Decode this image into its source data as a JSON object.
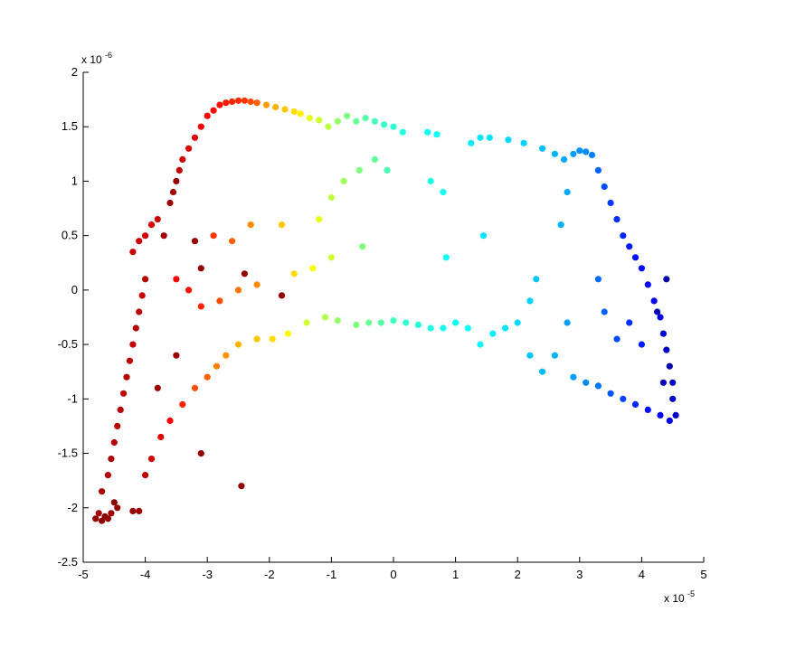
{
  "chart_data": {
    "type": "scatter",
    "title": "",
    "xlabel": "",
    "ylabel": "",
    "xlim": [
      -5,
      5
    ],
    "ylim": [
      -2.5,
      2
    ],
    "xticks": [
      "-5",
      "-4",
      "-3",
      "-2",
      "-1",
      "0",
      "1",
      "2",
      "3",
      "4",
      "5"
    ],
    "yticks": [
      "2",
      "1.5",
      "1",
      "0.5",
      "0",
      "-0.5",
      "-1",
      "-1.5",
      "-2",
      "-2.5"
    ],
    "x_multiplier": {
      "base": "x 10",
      "exponent": "-5"
    },
    "y_multiplier": {
      "base": "x 10",
      "exponent": "-6"
    },
    "grid": false,
    "legend": "none",
    "colormap": "jet",
    "colors": {
      "axis": "#000000",
      "background": "#ffffff"
    },
    "series": [
      {
        "points": [
          {
            "x": -4.8,
            "y": -2.1,
            "c": 0.98
          },
          {
            "x": -4.75,
            "y": -2.05,
            "c": 0.97
          },
          {
            "x": -4.7,
            "y": -2.12,
            "c": 0.98
          },
          {
            "x": -4.65,
            "y": -2.08,
            "c": 0.99
          },
          {
            "x": -4.6,
            "y": -2.1,
            "c": 0.98
          },
          {
            "x": -4.55,
            "y": -2.05,
            "c": 0.97
          },
          {
            "x": -4.5,
            "y": -1.95,
            "c": 0.99
          },
          {
            "x": -4.45,
            "y": -2.0,
            "c": 0.98
          },
          {
            "x": -4.2,
            "y": -2.03,
            "c": 0.98
          },
          {
            "x": -4.1,
            "y": -2.03,
            "c": 0.97
          },
          {
            "x": -4.7,
            "y": -1.85,
            "c": 0.96
          },
          {
            "x": -4.6,
            "y": -1.7,
            "c": 0.95
          },
          {
            "x": -4.55,
            "y": -1.55,
            "c": 0.96
          },
          {
            "x": -4.5,
            "y": -1.4,
            "c": 0.95
          },
          {
            "x": -4.45,
            "y": -1.25,
            "c": 0.94
          },
          {
            "x": -4.4,
            "y": -1.1,
            "c": 0.95
          },
          {
            "x": -4.35,
            "y": -0.95,
            "c": 0.94
          },
          {
            "x": -4.3,
            "y": -0.8,
            "c": 0.95
          },
          {
            "x": -4.25,
            "y": -0.65,
            "c": 0.94
          },
          {
            "x": -4.2,
            "y": -0.5,
            "c": 0.93
          },
          {
            "x": -4.15,
            "y": -0.35,
            "c": 0.95
          },
          {
            "x": -4.1,
            "y": -0.2,
            "c": 0.94
          },
          {
            "x": -4.05,
            "y": -0.05,
            "c": 0.93
          },
          {
            "x": -4.0,
            "y": 0.1,
            "c": 0.95
          },
          {
            "x": -4.2,
            "y": 0.35,
            "c": 0.93
          },
          {
            "x": -4.1,
            "y": 0.45,
            "c": 0.92
          },
          {
            "x": -4.0,
            "y": 0.5,
            "c": 0.92
          },
          {
            "x": -3.9,
            "y": 0.6,
            "c": 0.91
          },
          {
            "x": -3.8,
            "y": 0.65,
            "c": 0.93
          },
          {
            "x": -3.6,
            "y": 0.8,
            "c": 0.97
          },
          {
            "x": -3.55,
            "y": 0.9,
            "c": 0.97
          },
          {
            "x": -3.5,
            "y": 1.0,
            "c": 0.98
          },
          {
            "x": -3.45,
            "y": 1.1,
            "c": 0.94
          },
          {
            "x": -3.4,
            "y": 1.2,
            "c": 0.92
          },
          {
            "x": -3.3,
            "y": 1.3,
            "c": 0.91
          },
          {
            "x": -3.2,
            "y": 1.4,
            "c": 0.9
          },
          {
            "x": -3.1,
            "y": 1.5,
            "c": 0.89
          },
          {
            "x": -3.0,
            "y": 1.6,
            "c": 0.88
          },
          {
            "x": -2.9,
            "y": 1.65,
            "c": 0.87
          },
          {
            "x": -2.8,
            "y": 1.7,
            "c": 0.86
          },
          {
            "x": -2.7,
            "y": 1.72,
            "c": 0.85
          },
          {
            "x": -2.6,
            "y": 1.73,
            "c": 0.84
          },
          {
            "x": -2.5,
            "y": 1.74,
            "c": 0.83
          },
          {
            "x": -2.4,
            "y": 1.74,
            "c": 0.82
          },
          {
            "x": -2.3,
            "y": 1.73,
            "c": 0.8
          },
          {
            "x": -2.2,
            "y": 1.72,
            "c": 0.78
          },
          {
            "x": -2.05,
            "y": 1.7,
            "c": 0.72
          },
          {
            "x": -1.9,
            "y": 1.68,
            "c": 0.7
          },
          {
            "x": -1.75,
            "y": 1.66,
            "c": 0.68
          },
          {
            "x": -1.6,
            "y": 1.64,
            "c": 0.66
          },
          {
            "x": -1.5,
            "y": 1.62,
            "c": 0.64
          },
          {
            "x": -1.35,
            "y": 1.58,
            "c": 0.6
          },
          {
            "x": -1.2,
            "y": 1.56,
            "c": 0.58
          },
          {
            "x": -1.05,
            "y": 1.5,
            "c": 0.56
          },
          {
            "x": -0.9,
            "y": 1.55,
            "c": 0.52
          },
          {
            "x": -0.75,
            "y": 1.6,
            "c": 0.5
          },
          {
            "x": -0.6,
            "y": 1.55,
            "c": 0.48
          },
          {
            "x": -0.45,
            "y": 1.58,
            "c": 0.46
          },
          {
            "x": -0.3,
            "y": 1.55,
            "c": 0.44
          },
          {
            "x": -0.15,
            "y": 1.52,
            "c": 0.43
          },
          {
            "x": 0.0,
            "y": 1.5,
            "c": 0.42
          },
          {
            "x": 0.15,
            "y": 1.45,
            "c": 0.41
          },
          {
            "x": 0.55,
            "y": 1.45,
            "c": 0.39
          },
          {
            "x": 0.7,
            "y": 1.43,
            "c": 0.38
          },
          {
            "x": 1.25,
            "y": 1.35,
            "c": 0.36
          },
          {
            "x": 1.4,
            "y": 1.4,
            "c": 0.35
          },
          {
            "x": 1.55,
            "y": 1.4,
            "c": 0.35
          },
          {
            "x": 1.85,
            "y": 1.38,
            "c": 0.34
          },
          {
            "x": 2.1,
            "y": 1.35,
            "c": 0.33
          },
          {
            "x": 2.4,
            "y": 1.3,
            "c": 0.31
          },
          {
            "x": 2.6,
            "y": 1.25,
            "c": 0.3
          },
          {
            "x": 2.75,
            "y": 1.2,
            "c": 0.29
          },
          {
            "x": 2.9,
            "y": 1.25,
            "c": 0.28
          },
          {
            "x": 3.0,
            "y": 1.28,
            "c": 0.27
          },
          {
            "x": 3.1,
            "y": 1.27,
            "c": 0.26
          },
          {
            "x": 3.2,
            "y": 1.24,
            "c": 0.25
          },
          {
            "x": 3.3,
            "y": 1.1,
            "c": 0.22
          },
          {
            "x": 3.4,
            "y": 0.95,
            "c": 0.2
          },
          {
            "x": 3.5,
            "y": 0.8,
            "c": 0.18
          },
          {
            "x": 3.6,
            "y": 0.65,
            "c": 0.17
          },
          {
            "x": 3.7,
            "y": 0.5,
            "c": 0.16
          },
          {
            "x": 3.8,
            "y": 0.4,
            "c": 0.15
          },
          {
            "x": 3.9,
            "y": 0.3,
            "c": 0.14
          },
          {
            "x": 4.0,
            "y": 0.2,
            "c": 0.13
          },
          {
            "x": 4.1,
            "y": 0.05,
            "c": 0.12
          },
          {
            "x": 4.2,
            "y": -0.1,
            "c": 0.11
          },
          {
            "x": 4.3,
            "y": -0.25,
            "c": 0.1
          },
          {
            "x": 4.35,
            "y": -0.4,
            "c": 0.08
          },
          {
            "x": 4.4,
            "y": -0.55,
            "c": 0.06
          },
          {
            "x": 4.45,
            "y": -0.7,
            "c": 0.05
          },
          {
            "x": 4.5,
            "y": -0.85,
            "c": 0.06
          },
          {
            "x": 4.5,
            "y": -1.0,
            "c": 0.07
          },
          {
            "x": 4.55,
            "y": -1.15,
            "c": 0.08
          },
          {
            "x": 4.45,
            "y": -1.2,
            "c": 0.1
          },
          {
            "x": 4.3,
            "y": -1.15,
            "c": 0.12
          },
          {
            "x": 4.1,
            "y": -1.1,
            "c": 0.14
          },
          {
            "x": 3.9,
            "y": -1.05,
            "c": 0.16
          },
          {
            "x": 3.7,
            "y": -1.0,
            "c": 0.19
          },
          {
            "x": 3.5,
            "y": -0.95,
            "c": 0.21
          },
          {
            "x": 3.3,
            "y": -0.88,
            "c": 0.24
          },
          {
            "x": 3.1,
            "y": -0.85,
            "c": 0.26
          },
          {
            "x": 2.9,
            "y": -0.8,
            "c": 0.28
          },
          {
            "x": 3.6,
            "y": -0.45,
            "c": 0.2
          },
          {
            "x": 3.8,
            "y": -0.3,
            "c": 0.17
          },
          {
            "x": 4.0,
            "y": -0.5,
            "c": 0.15
          },
          {
            "x": 3.4,
            "y": -0.2,
            "c": 0.22
          },
          {
            "x": 3.3,
            "y": 0.1,
            "c": 0.23
          },
          {
            "x": 2.3,
            "y": 0.1,
            "c": 0.32
          },
          {
            "x": 2.2,
            "y": -0.1,
            "c": 0.33
          },
          {
            "x": 2.0,
            "y": -0.3,
            "c": 0.34
          },
          {
            "x": 1.8,
            "y": -0.35,
            "c": 0.35
          },
          {
            "x": 1.6,
            "y": -0.4,
            "c": 0.36
          },
          {
            "x": 1.4,
            "y": -0.5,
            "c": 0.37
          },
          {
            "x": 1.2,
            "y": -0.35,
            "c": 0.38
          },
          {
            "x": 1.0,
            "y": -0.3,
            "c": 0.38
          },
          {
            "x": 0.8,
            "y": -0.35,
            "c": 0.39
          },
          {
            "x": 0.6,
            "y": -0.35,
            "c": 0.4
          },
          {
            "x": 0.4,
            "y": -0.32,
            "c": 0.41
          },
          {
            "x": 0.2,
            "y": -0.3,
            "c": 0.42
          },
          {
            "x": 0.0,
            "y": -0.28,
            "c": 0.44
          },
          {
            "x": -0.2,
            "y": -0.3,
            "c": 0.46
          },
          {
            "x": -0.4,
            "y": -0.3,
            "c": 0.48
          },
          {
            "x": -0.6,
            "y": -0.32,
            "c": 0.5
          },
          {
            "x": -0.9,
            "y": -0.28,
            "c": 0.52
          },
          {
            "x": -1.1,
            "y": -0.25,
            "c": 0.55
          },
          {
            "x": -1.4,
            "y": -0.3,
            "c": 0.58
          },
          {
            "x": -1.7,
            "y": -0.4,
            "c": 0.63
          },
          {
            "x": -1.95,
            "y": -0.45,
            "c": 0.66
          },
          {
            "x": -2.2,
            "y": -0.45,
            "c": 0.68
          },
          {
            "x": -2.5,
            "y": -0.5,
            "c": 0.7
          },
          {
            "x": -2.7,
            "y": -0.6,
            "c": 0.73
          },
          {
            "x": -2.85,
            "y": -0.7,
            "c": 0.75
          },
          {
            "x": -3.0,
            "y": -0.8,
            "c": 0.78
          },
          {
            "x": -3.2,
            "y": -0.9,
            "c": 0.8
          },
          {
            "x": -3.4,
            "y": -1.05,
            "c": 0.84
          },
          {
            "x": -3.6,
            "y": -1.2,
            "c": 0.88
          },
          {
            "x": -3.75,
            "y": -1.35,
            "c": 0.9
          },
          {
            "x": -3.9,
            "y": -1.55,
            "c": 0.92
          },
          {
            "x": -4.0,
            "y": -1.7,
            "c": 0.94
          },
          {
            "x": -3.5,
            "y": 0.1,
            "c": 0.88
          },
          {
            "x": -3.3,
            "y": 0.0,
            "c": 0.86
          },
          {
            "x": -3.1,
            "y": -0.15,
            "c": 0.84
          },
          {
            "x": -2.8,
            "y": -0.1,
            "c": 0.8
          },
          {
            "x": -2.5,
            "y": 0.0,
            "c": 0.76
          },
          {
            "x": -2.2,
            "y": 0.05,
            "c": 0.74
          },
          {
            "x": -1.8,
            "y": -0.05,
            "c": 0.98
          },
          {
            "x": -1.6,
            "y": 0.15,
            "c": 0.66
          },
          {
            "x": -1.3,
            "y": 0.2,
            "c": 0.62
          },
          {
            "x": -1.0,
            "y": 0.3,
            "c": 0.58
          },
          {
            "x": -0.5,
            "y": 0.4,
            "c": 0.5
          },
          {
            "x": -2.9,
            "y": 0.5,
            "c": 0.82
          },
          {
            "x": -2.6,
            "y": 0.45,
            "c": 0.78
          },
          {
            "x": -2.3,
            "y": 0.6,
            "c": 0.74
          },
          {
            "x": -1.8,
            "y": 0.6,
            "c": 0.68
          },
          {
            "x": -1.2,
            "y": 0.65,
            "c": 0.6
          },
          {
            "x": -1.0,
            "y": 0.85,
            "c": 0.56
          },
          {
            "x": -0.8,
            "y": 1.0,
            "c": 0.53
          },
          {
            "x": -0.55,
            "y": 1.1,
            "c": 0.5
          },
          {
            "x": -0.3,
            "y": 1.2,
            "c": 0.47
          },
          {
            "x": -0.1,
            "y": 1.1,
            "c": 0.45
          },
          {
            "x": 0.8,
            "y": 0.9,
            "c": 0.39
          },
          {
            "x": 0.6,
            "y": 1.0,
            "c": 0.4
          },
          {
            "x": 1.45,
            "y": 0.5,
            "c": 0.35
          },
          {
            "x": 0.85,
            "y": 0.3,
            "c": 0.39
          },
          {
            "x": 2.8,
            "y": 0.9,
            "c": 0.29
          },
          {
            "x": 2.7,
            "y": 0.6,
            "c": 0.3
          },
          {
            "x": 2.8,
            "y": -0.3,
            "c": 0.28
          },
          {
            "x": 2.6,
            "y": -0.6,
            "c": 0.3
          },
          {
            "x": 2.4,
            "y": -0.75,
            "c": 0.31
          },
          {
            "x": 2.2,
            "y": -0.6,
            "c": 0.32
          },
          {
            "x": -3.7,
            "y": 0.5,
            "c": 0.97
          },
          {
            "x": -3.2,
            "y": 0.45,
            "c": 0.98
          },
          {
            "x": -3.1,
            "y": 0.2,
            "c": 0.98
          },
          {
            "x": -2.4,
            "y": 0.15,
            "c": 0.98
          },
          {
            "x": -3.5,
            "y": -0.6,
            "c": 0.97
          },
          {
            "x": -3.1,
            "y": -1.5,
            "c": 0.98
          },
          {
            "x": -2.45,
            "y": -1.8,
            "c": 0.98
          },
          {
            "x": -3.8,
            "y": -0.9,
            "c": 0.97
          },
          {
            "x": 4.4,
            "y": 0.1,
            "c": 0.04
          },
          {
            "x": 4.25,
            "y": -0.2,
            "c": 0.05
          },
          {
            "x": 4.35,
            "y": -0.85,
            "c": 0.06
          }
        ]
      }
    ]
  }
}
